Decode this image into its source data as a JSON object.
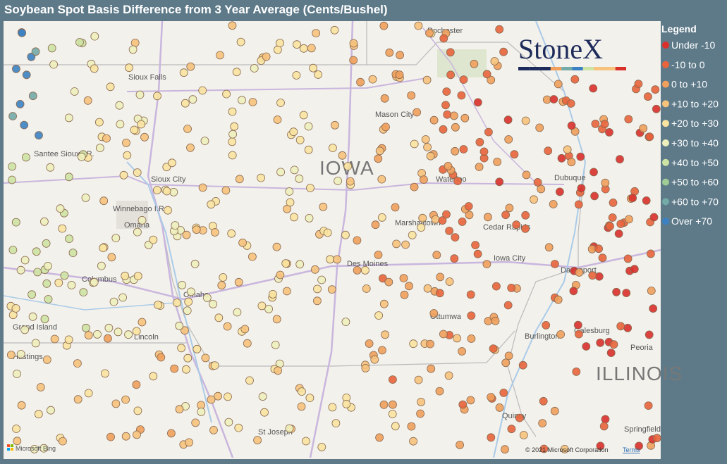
{
  "header": {
    "title": "Soybean Spot Basis Difference from 3 Year Average (Cents/Bushel)"
  },
  "legend": {
    "title": "Legend",
    "entries": [
      {
        "label": "Under -10",
        "color": "#d9302c"
      },
      {
        "label": "-10 to 0",
        "color": "#e8643c"
      },
      {
        "label": "0 to +10",
        "color": "#f0a05c"
      },
      {
        "label": "+10 to +20",
        "color": "#f6c27c"
      },
      {
        "label": "+20 to +30",
        "color": "#f8e3a0"
      },
      {
        "label": "+30 to +40",
        "color": "#eef0bc"
      },
      {
        "label": "+40 to +50",
        "color": "#cde3a4"
      },
      {
        "label": "+50 to +60",
        "color": "#9fcc94"
      },
      {
        "label": "+60 to +70",
        "color": "#74aaa8"
      },
      {
        "label": "Over +70",
        "color": "#3c82c2"
      }
    ]
  },
  "map": {
    "labels": [
      "Rochester",
      "Sioux Falls",
      "Mason City",
      "IOWA",
      "Waterloo",
      "Dubuque",
      "Santee Sioux I.R.",
      "Sioux City",
      "Winnebago I.R.",
      "Omaha",
      "Marshalltown",
      "Cedar Rapids",
      "Iowa City",
      "Davenport",
      "Des Moines",
      "Columbus",
      "Omaha",
      "Ottumwa",
      "Grand Island",
      "Lincoln",
      "Burlington",
      "Galesburg",
      "Peoria",
      "ILLINOIS",
      "Hastings",
      "Quincy",
      "St Joseph",
      "Springfield"
    ],
    "logo": "StoneX",
    "attribution": "Microsoft Bing",
    "copyright": "© 2021 Microsoft Corporation",
    "terms": "Terms"
  }
}
